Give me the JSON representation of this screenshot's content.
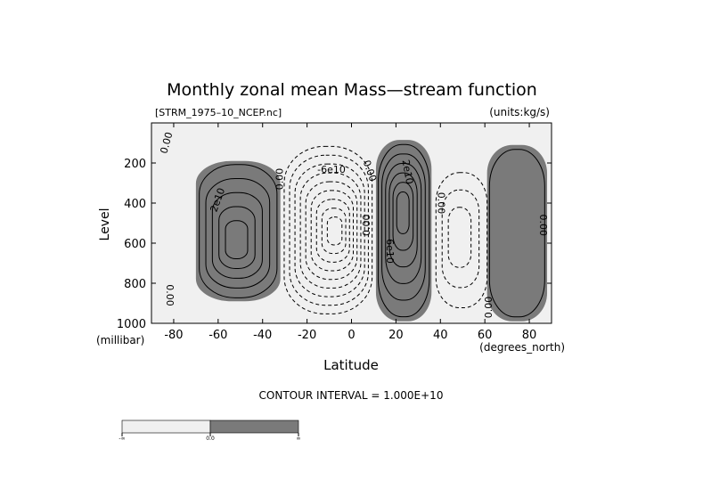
{
  "chart_data": {
    "type": "contour",
    "title": "Monthly zonal mean Mass—stream function",
    "file_label": "[STRM_1975–10_NCEP.nc]",
    "units_label": "(units:kg/s)",
    "xlabel": "Latitude",
    "ylabel": "Level",
    "x_unit": "(degrees_north)",
    "y_unit": "(millibar)",
    "xlim": [
      -90,
      90
    ],
    "ylim": [
      1000,
      0
    ],
    "x_ticks": [
      -80,
      -60,
      -40,
      -20,
      0,
      20,
      40,
      60,
      80
    ],
    "y_ticks": [
      200,
      400,
      600,
      800,
      1000
    ],
    "contour_interval_text": "CONTOUR INTERVAL = 1.000E+10",
    "contour_interval": 10000000000.0,
    "colors": {
      "positive_fill": "#7a7a7a",
      "negative_fill": "#f0f0f0",
      "line": "#000000"
    },
    "cells": [
      {
        "sign": "positive",
        "lat_min": -70,
        "lat_max": -32,
        "p_top": 190,
        "p_bottom": 890,
        "lat_center": -52,
        "p_center": 600,
        "levels": 5
      },
      {
        "sign": "negative",
        "lat_min": -32,
        "lat_max": 11,
        "p_top": 95,
        "p_bottom": 975,
        "lat_center": -7,
        "p_center": 540,
        "levels": 9
      },
      {
        "sign": "positive",
        "lat_min": 11,
        "lat_max": 36,
        "p_top": 85,
        "p_bottom": 990,
        "lat_center": 23,
        "p_center": 420,
        "levels": 6
      },
      {
        "sign": "negative",
        "lat_min": 37,
        "lat_max": 62,
        "p_top": 230,
        "p_bottom": 940,
        "lat_center": 48,
        "p_center": 560,
        "levels": 3
      },
      {
        "sign": "positive",
        "lat_min": 61,
        "lat_max": 88,
        "p_top": 110,
        "p_bottom": 990,
        "lat_center": 72,
        "p_center": 560,
        "levels": 1
      }
    ],
    "contour_labels": [
      {
        "text": "0.00",
        "lat": -83,
        "p": 100,
        "rotate": -75
      },
      {
        "text": "2e10",
        "lat": -60,
        "p": 385,
        "rotate": -70
      },
      {
        "text": "0.00",
        "lat": -32,
        "p": 280,
        "rotate": -90
      },
      {
        "text": "-6e10",
        "lat": -9,
        "p": 235,
        "rotate": 0
      },
      {
        "text": "0.00",
        "lat": 8,
        "p": 240,
        "rotate": 70
      },
      {
        "text": "0.00",
        "lat": 7,
        "p": 510,
        "rotate": -90
      },
      {
        "text": "2e10",
        "lat": 25,
        "p": 245,
        "rotate": 80
      },
      {
        "text": "6e10",
        "lat": 17,
        "p": 640,
        "rotate": 90
      },
      {
        "text": "0.00",
        "lat": 40,
        "p": 400,
        "rotate": 90
      },
      {
        "text": "0.00",
        "lat": 62,
        "p": 920,
        "rotate": -90
      },
      {
        "text": "0.00",
        "lat": 86,
        "p": 510,
        "rotate": 90
      },
      {
        "text": "0.00",
        "lat": -82,
        "p": 860,
        "rotate": 90
      }
    ],
    "colorbar": {
      "labels": [
        "-∞",
        "0.0",
        "∞"
      ]
    }
  }
}
